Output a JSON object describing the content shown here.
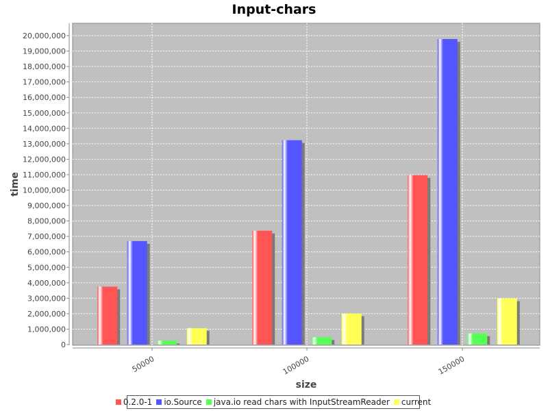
{
  "chart_data": {
    "type": "bar",
    "title": "Input-chars",
    "xlabel": "size",
    "ylabel": "time",
    "categories": [
      "50000",
      "100000",
      "150000"
    ],
    "series": [
      {
        "name": "0.2.0-1",
        "color": "#ff5555",
        "values": [
          3750000,
          7370000,
          10970000
        ]
      },
      {
        "name": "io.Source",
        "color": "#5555ff",
        "values": [
          6700000,
          13230000,
          19780000
        ]
      },
      {
        "name": "java.io read chars with InputStreamReader",
        "color": "#55ff55",
        "values": [
          250000,
          470000,
          720000
        ]
      },
      {
        "name": "current",
        "color": "#ffff55",
        "values": [
          1060000,
          2010000,
          2990000
        ]
      }
    ],
    "ylim": [
      0,
      21000000
    ],
    "yticks": [
      0,
      1000000,
      2000000,
      3000000,
      4000000,
      5000000,
      6000000,
      7000000,
      8000000,
      9000000,
      10000000,
      11000000,
      12000000,
      13000000,
      14000000,
      15000000,
      16000000,
      17000000,
      18000000,
      19000000,
      20000000
    ],
    "ytick_labels": [
      "0",
      "1,000,000",
      "2,000,000",
      "3,000,000",
      "4,000,000",
      "5,000,000",
      "6,000,000",
      "7,000,000",
      "8,000,000",
      "9,000,000",
      "10,000,000",
      "11,000,000",
      "12,000,000",
      "13,000,000",
      "14,000,000",
      "15,000,000",
      "16,000,000",
      "17,000,000",
      "18,000,000",
      "19,000,000",
      "20,000,000"
    ],
    "grid": true,
    "legend_position": "bottom",
    "plot_background": "#c0c0c0"
  }
}
